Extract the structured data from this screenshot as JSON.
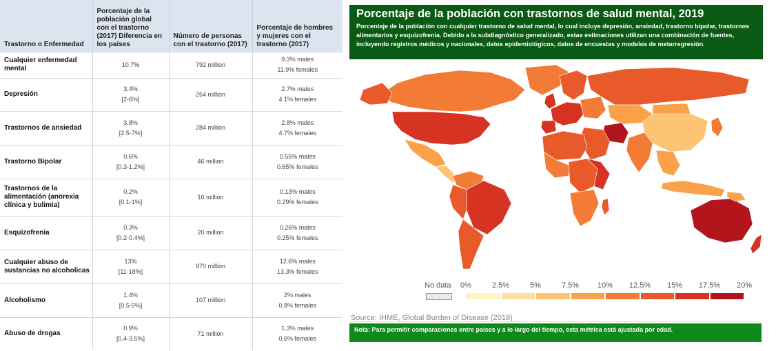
{
  "table": {
    "headers": [
      "Trastorno o Enfermedad",
      "Porcentaje de la población global con el trastorno (2017) Diferencia en los países",
      "Número de personas con el trastorno (2017)",
      "Porcentaje de hombres y mujeres con el trastorno (2017)"
    ],
    "rows": [
      {
        "name": "Cualquier enfermedad mental",
        "pct": "10.7%",
        "range": "",
        "people": "792 million",
        "males": "9.3% males",
        "females": "11.9% females"
      },
      {
        "name": "Depresión",
        "pct": "3.4%",
        "range": "[2-6%]",
        "people": "264 million",
        "males": "2.7% males",
        "females": "4.1% females"
      },
      {
        "name": "Trastornos de ansiedad",
        "pct": "3.8%",
        "range": "[2.5-7%]",
        "people": "284 million",
        "males": "2.8% males",
        "females": "4.7% females"
      },
      {
        "name": "Trastorno Bipolar",
        "pct": "0.6%",
        "range": "[0.3-1.2%]",
        "people": "46 million",
        "males": "0.55% males",
        "females": "0.65% females"
      },
      {
        "name": "Trastornos de la alimentación (anorexia clínica y bulimia)",
        "pct": "0.2%",
        "range": "[0.1-1%]",
        "people": "16 million",
        "males": "0.13% males",
        "females": "0.29% females"
      },
      {
        "name": "Esquizofrenia",
        "pct": "0.3%",
        "range": "[0.2-0.4%]",
        "people": "20 million",
        "males": "0.26% males",
        "females": "0.25% females"
      },
      {
        "name": "Cualquier abuso de sustancias no alcoholicas",
        "pct": "13%",
        "range": "[11-18%]",
        "people": "970 million",
        "males": "12.6% males",
        "females": "13.3% females"
      },
      {
        "name": "Alcoholismo",
        "pct": "1.4%",
        "range": "[0.5-5%]",
        "people": "107 million",
        "males": "2% males",
        "females": "0.8% females"
      },
      {
        "name": "Abuso de drogas",
        "pct": "0.9%",
        "range": "[0.4-3.5%]",
        "people": "71 million",
        "males": "1.3% males",
        "females": "0.6% females"
      }
    ]
  },
  "map": {
    "title": "Porcentaje de la población con trastornos de salud mental, 2019",
    "subtitle": "Porcentaje de la población con cualquier trastorno de salud mental, lo cual incluye depresión, ansiedad, trastorno bipolar, trastornos alimentarios y esquizofrenia. Debido a la subdiagnóstico generalizado, estas estimaciones utilizan una combinación de fuentes, incluyendo registros médicos y nacionales, datos epidemiológicos, datos de encuestas y modelos de metarregresión.",
    "source": "Source: IHME, Global Burden of Disease (2019)",
    "note": "Nota: Para permitir comparaciones entre países y a lo largo del tiempo, esta métrica está ajustada por edad.",
    "legend": {
      "nodata_label": "No data",
      "ticks": [
        "0%",
        "2.5%",
        "5%",
        "7.5%",
        "10%",
        "12.5%",
        "15%",
        "17.5%",
        "20%"
      ],
      "colors": [
        "#fef3c4",
        "#fde1a0",
        "#fcc473",
        "#f9a24a",
        "#f27c36",
        "#e85a2a",
        "#d63322",
        "#b3151c"
      ]
    }
  }
}
